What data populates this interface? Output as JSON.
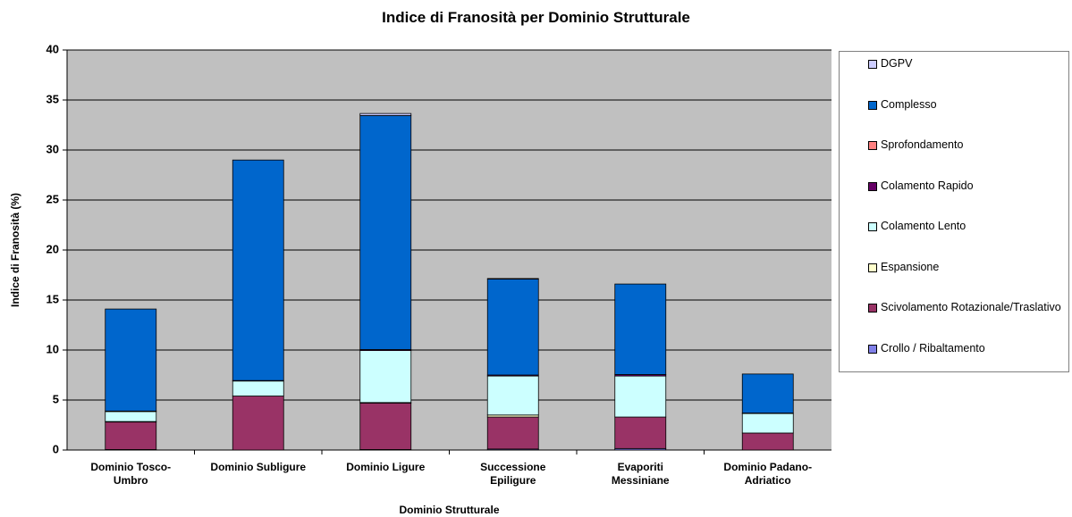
{
  "chart_data": {
    "type": "bar",
    "stacked": true,
    "title": "Indice di Franosità per Dominio Strutturale",
    "x_label": "Dominio Strutturale",
    "y_label": "Indice di Franosità (%)",
    "categories": [
      "Dominio Tosco-Umbro",
      "Dominio Subligure",
      "Dominio Ligure",
      "Successione Epiligure",
      "Evaporiti Messiniane",
      "Dominio Padano-Adriatico"
    ],
    "series": [
      {
        "name": "Crollo / Ribaltamento",
        "color": "#8080e8",
        "values": [
          0.05,
          0,
          0.05,
          0.1,
          0.15,
          0
        ]
      },
      {
        "name": "Scivolamento Rotazionale/Traslativo",
        "color": "#993366",
        "values": [
          2.75,
          5.4,
          4.65,
          3.2,
          3.15,
          1.7
        ]
      },
      {
        "name": "Espansione",
        "color": "#ffffcc",
        "values": [
          0.05,
          0,
          0.05,
          0.2,
          0,
          0
        ]
      },
      {
        "name": "Colamento Lento",
        "color": "#ccffff",
        "values": [
          1.0,
          1.5,
          5.2,
          3.9,
          4.1,
          1.95
        ]
      },
      {
        "name": "Colamento Rapido",
        "color": "#660066",
        "values": [
          0.05,
          0.05,
          0.1,
          0.1,
          0.15,
          0.05
        ]
      },
      {
        "name": "Sprofondamento",
        "color": "#ff8080",
        "values": [
          0,
          0,
          0,
          0,
          0,
          0
        ]
      },
      {
        "name": "Complesso",
        "color": "#0066cc",
        "values": [
          10.2,
          22.05,
          23.4,
          9.6,
          9.05,
          3.9
        ]
      },
      {
        "name": "DGPV",
        "color": "#ccccff",
        "values": [
          0,
          0,
          0.2,
          0.05,
          0,
          0
        ]
      }
    ],
    "ylim": [
      0,
      40
    ],
    "yticks": [
      0,
      5,
      10,
      15,
      20,
      25,
      30,
      35,
      40
    ],
    "grid": true,
    "plot_background": "#c0c0c0",
    "legend": "right"
  }
}
